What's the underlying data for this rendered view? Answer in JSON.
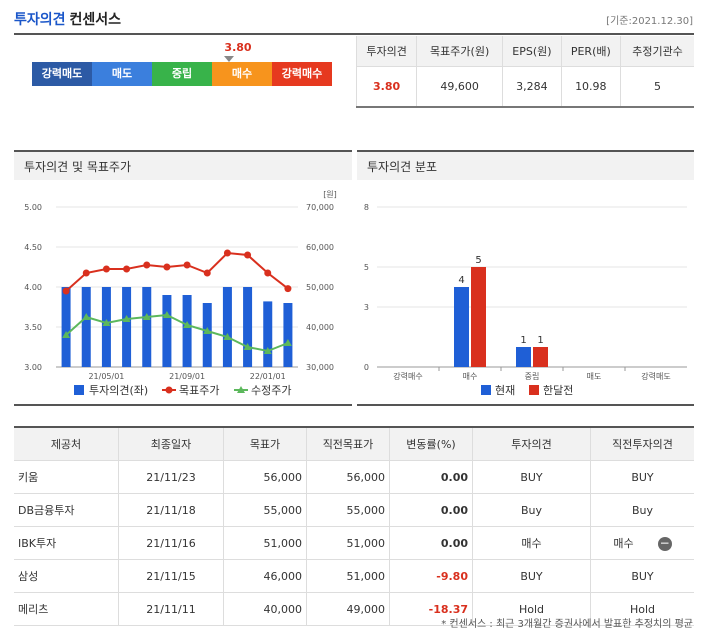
{
  "header": {
    "title": "투자의견",
    "subtitle": "컨센서스",
    "base_date": "[기준:2021.12.30]"
  },
  "opinion_scale": {
    "value_label": "3.80",
    "levels": [
      {
        "label": "강력매도",
        "color": "#2c5aa5"
      },
      {
        "label": "매도",
        "color": "#3b7fdd"
      },
      {
        "label": "중립",
        "color": "#38b34a"
      },
      {
        "label": "매수",
        "color": "#f7941d"
      },
      {
        "label": "강력매수",
        "color": "#e6391f"
      }
    ]
  },
  "summary": {
    "headers": [
      "투자의견",
      "목표주가(원)",
      "EPS(원)",
      "PER(배)",
      "추정기관수"
    ],
    "values": [
      "3.80",
      "49,600",
      "3,284",
      "10.98",
      "5"
    ]
  },
  "panel_left": {
    "title": "투자의견 및 목표주가"
  },
  "panel_right": {
    "title": "투자의견 분포"
  },
  "chart_data": [
    {
      "type": "bar",
      "title": "투자의견 및 목표주가",
      "y_left": {
        "ticks": [
          "5.00",
          "4.50",
          "4.00",
          "3.50",
          "3.00"
        ],
        "range": [
          3.0,
          5.0
        ]
      },
      "y_right": {
        "unit": "[원]",
        "ticks": [
          "70,000",
          "60,000",
          "50,000",
          "40,000",
          "30,000"
        ],
        "range": [
          30000,
          70000
        ]
      },
      "x_ticks": [
        "21/05/01",
        "21/09/01",
        "22/01/01"
      ],
      "series": [
        {
          "name": "투자의견(좌)",
          "color": "#1f5fd6",
          "values": [
            4.0,
            4.0,
            4.0,
            4.0,
            4.0,
            3.9,
            3.9,
            3.8,
            4.0,
            4.0,
            3.82,
            3.8
          ]
        },
        {
          "name": "목표주가",
          "color": "#d9301e",
          "values": [
            49000,
            53500,
            54500,
            54500,
            55500,
            55000,
            55500,
            53500,
            58500,
            58000,
            53500,
            49600
          ]
        },
        {
          "name": "수정주가",
          "color": "#5cb85c",
          "values": [
            38000,
            42500,
            41000,
            42000,
            42500,
            43000,
            40500,
            39000,
            37500,
            35000,
            34000,
            36000
          ]
        }
      ]
    },
    {
      "type": "bar",
      "title": "투자의견 분포",
      "categories": [
        "강력매수",
        "매수",
        "중립",
        "매도",
        "강력매도"
      ],
      "y_ticks": [
        "8",
        "5",
        "3",
        "0"
      ],
      "ylim": [
        0,
        8
      ],
      "series": [
        {
          "name": "현재",
          "color": "#1f5fd6",
          "values": [
            0,
            4,
            1,
            0,
            0
          ]
        },
        {
          "name": "한달전",
          "color": "#d9301e",
          "values": [
            0,
            5,
            1,
            0,
            0
          ]
        }
      ]
    }
  ],
  "table": {
    "headers": [
      "제공처",
      "최종일자",
      "목표가",
      "직전목표가",
      "변동률(%)",
      "투자의견",
      "직전투자의견"
    ],
    "rows": [
      [
        "키움",
        "21/11/23",
        "56,000",
        "56,000",
        "0.00",
        "BUY",
        "BUY"
      ],
      [
        "DB금융투자",
        "21/11/18",
        "55,000",
        "55,000",
        "0.00",
        "Buy",
        "Buy"
      ],
      [
        "IBK투자",
        "21/11/16",
        "51,000",
        "51,000",
        "0.00",
        "매수",
        "매수"
      ],
      [
        "삼성",
        "21/11/15",
        "46,000",
        "51,000",
        "-9.80",
        "BUY",
        "BUY"
      ],
      [
        "메리츠",
        "21/11/11",
        "40,000",
        "49,000",
        "-18.37",
        "Hold",
        "Hold"
      ]
    ]
  },
  "footnote": "* 컨센서스 : 최근 3개월간 증권사에서 발표한 추정치의 평균"
}
